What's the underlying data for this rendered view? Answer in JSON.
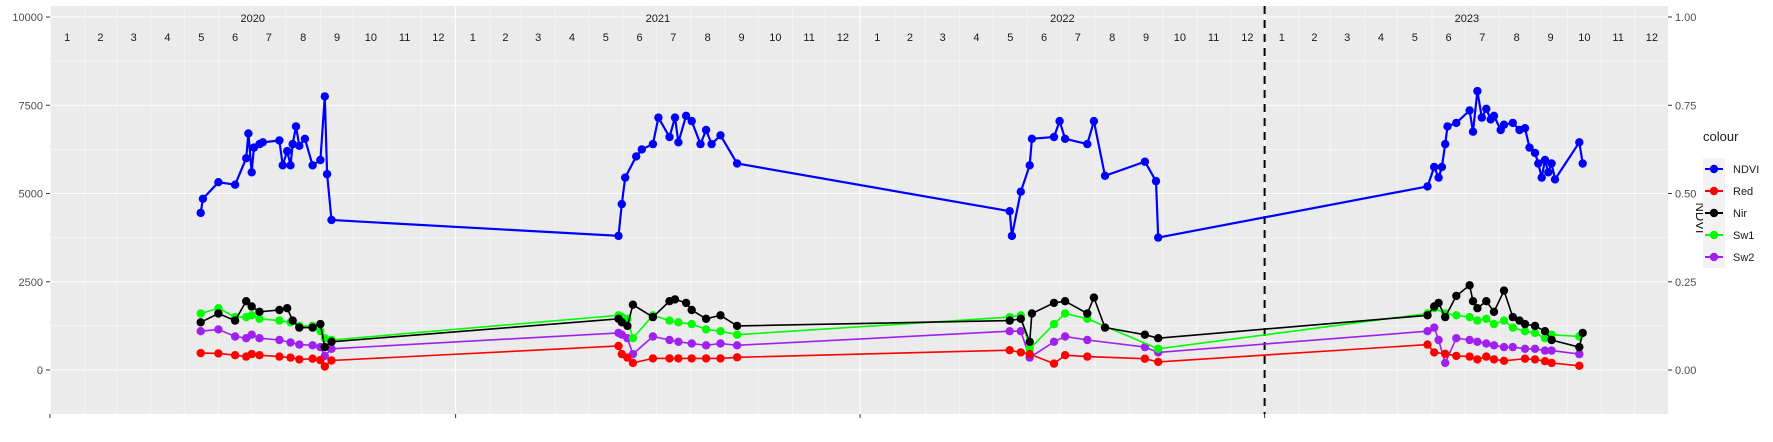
{
  "chart_data": {
    "type": "line",
    "left_axis": {
      "ylim": [
        0,
        10000
      ],
      "ticks": [
        0,
        2500,
        5000,
        7500,
        10000
      ],
      "tick_labels": [
        "0",
        "2500",
        "5000",
        "7500",
        "10000"
      ]
    },
    "right_axis": {
      "title": "NDVI",
      "ylim": [
        0,
        1
      ],
      "ticks": [
        0,
        0.25,
        0.5,
        0.75,
        1
      ],
      "tick_labels": [
        "0.00",
        "0.25",
        "0.50",
        "0.75",
        "1.00"
      ]
    },
    "years": [
      "2020",
      "2021",
      "2022",
      "2023"
    ],
    "months": [
      "1",
      "2",
      "3",
      "4",
      "5",
      "6",
      "7",
      "8",
      "9",
      "10",
      "11",
      "12"
    ],
    "x_start": "2020-01-01",
    "x_end": "2023-12-31",
    "vline": "2023-01-01",
    "grid": true,
    "legend": {
      "title": "colour",
      "position": "right",
      "items": [
        "NDVI",
        "Red",
        "Nir",
        "Sw1",
        "Sw2"
      ]
    },
    "series": [
      {
        "name": "NDVI",
        "color": "#0000ff",
        "axis": "right",
        "x": [
          "2020-05-16",
          "2020-05-18",
          "2020-06-01",
          "2020-06-16",
          "2020-06-26",
          "2020-06-28",
          "2020-07-01",
          "2020-07-03",
          "2020-07-08",
          "2020-07-11",
          "2020-07-26",
          "2020-07-29",
          "2020-08-02",
          "2020-08-05",
          "2020-08-07",
          "2020-08-10",
          "2020-08-13",
          "2020-08-18",
          "2020-08-25",
          "2020-09-01",
          "2020-09-05",
          "2020-09-07",
          "2020-09-11",
          "2021-05-28",
          "2021-05-31",
          "2021-06-03",
          "2021-06-13",
          "2021-06-18",
          "2021-06-28",
          "2021-07-03",
          "2021-07-13",
          "2021-07-18",
          "2021-07-21",
          "2021-07-28",
          "2021-08-02",
          "2021-08-10",
          "2021-08-15",
          "2021-08-20",
          "2021-08-28",
          "2021-09-12",
          "2022-05-16",
          "2022-05-18",
          "2022-05-26",
          "2022-06-03",
          "2022-06-05",
          "2022-06-25",
          "2022-06-30",
          "2022-07-05",
          "2022-07-25",
          "2022-07-31",
          "2022-08-10",
          "2022-09-15",
          "2022-09-25",
          "2022-09-27",
          "2023-05-28",
          "2023-06-03",
          "2023-06-07",
          "2023-06-10",
          "2023-06-13",
          "2023-06-15",
          "2023-06-23",
          "2023-07-05",
          "2023-07-08",
          "2023-07-12",
          "2023-07-16",
          "2023-07-20",
          "2023-07-24",
          "2023-07-27",
          "2023-08-02",
          "2023-08-05",
          "2023-08-13",
          "2023-08-19",
          "2023-08-24",
          "2023-08-28",
          "2023-09-02",
          "2023-09-05",
          "2023-09-08",
          "2023-09-11",
          "2023-09-14",
          "2023-09-17",
          "2023-09-20",
          "2023-10-12",
          "2023-10-15"
        ],
        "values": [
          0.445,
          0.485,
          0.532,
          0.525,
          0.6,
          0.67,
          0.56,
          0.63,
          0.64,
          0.645,
          0.65,
          0.58,
          0.62,
          0.58,
          0.64,
          0.69,
          0.635,
          0.655,
          0.58,
          0.595,
          0.775,
          0.555,
          0.425,
          0.38,
          0.47,
          0.545,
          0.605,
          0.625,
          0.64,
          0.715,
          0.66,
          0.715,
          0.645,
          0.72,
          0.705,
          0.64,
          0.68,
          0.64,
          0.665,
          0.585,
          0.45,
          0.38,
          0.505,
          0.58,
          0.655,
          0.66,
          0.705,
          0.655,
          0.64,
          0.705,
          0.55,
          0.59,
          0.535,
          0.375,
          0.52,
          0.575,
          0.545,
          0.575,
          0.64,
          0.69,
          0.7,
          0.735,
          0.675,
          0.79,
          0.715,
          0.74,
          0.71,
          0.72,
          0.68,
          0.695,
          0.7,
          0.68,
          0.685,
          0.63,
          0.615,
          0.585,
          0.545,
          0.595,
          0.56,
          0.585,
          0.54,
          0.645,
          0.585
        ]
      },
      {
        "name": "Red",
        "color": "#ff0000",
        "axis": "left",
        "x": [
          "2020-05-16",
          "2020-06-01",
          "2020-06-16",
          "2020-06-26",
          "2020-07-01",
          "2020-07-08",
          "2020-07-26",
          "2020-08-05",
          "2020-08-13",
          "2020-08-25",
          "2020-09-01",
          "2020-09-05",
          "2020-09-11",
          "2021-05-28",
          "2021-05-31",
          "2021-06-05",
          "2021-06-10",
          "2021-06-28",
          "2021-07-13",
          "2021-07-21",
          "2021-08-02",
          "2021-08-15",
          "2021-08-28",
          "2021-09-12",
          "2022-05-16",
          "2022-05-26",
          "2022-06-03",
          "2022-06-25",
          "2022-07-05",
          "2022-07-25",
          "2022-09-15",
          "2022-09-27",
          "2023-05-28",
          "2023-06-03",
          "2023-06-13",
          "2023-06-23",
          "2023-07-05",
          "2023-07-12",
          "2023-07-20",
          "2023-07-27",
          "2023-08-05",
          "2023-08-24",
          "2023-09-02",
          "2023-09-11",
          "2023-09-17",
          "2023-10-12"
        ],
        "values": [
          480,
          470,
          420,
          380,
          450,
          420,
          380,
          350,
          300,
          320,
          280,
          100,
          270,
          680,
          450,
          350,
          200,
          330,
          330,
          330,
          330,
          330,
          330,
          360,
          560,
          500,
          450,
          180,
          420,
          380,
          320,
          230,
          720,
          500,
          460,
          400,
          380,
          300,
          380,
          300,
          260,
          320,
          300,
          250,
          200,
          120
        ]
      },
      {
        "name": "Nir",
        "color": "#000000",
        "axis": "left",
        "x": [
          "2020-05-16",
          "2020-06-01",
          "2020-06-16",
          "2020-06-26",
          "2020-07-01",
          "2020-07-08",
          "2020-07-26",
          "2020-08-02",
          "2020-08-07",
          "2020-08-13",
          "2020-08-25",
          "2020-09-01",
          "2020-09-05",
          "2020-09-11",
          "2021-05-28",
          "2021-05-31",
          "2021-06-05",
          "2021-06-10",
          "2021-06-28",
          "2021-07-13",
          "2021-07-18",
          "2021-07-28",
          "2021-08-02",
          "2021-08-15",
          "2021-08-28",
          "2021-09-12",
          "2022-05-16",
          "2022-05-26",
          "2022-06-03",
          "2022-06-05",
          "2022-06-25",
          "2022-07-05",
          "2022-07-25",
          "2022-07-31",
          "2022-08-10",
          "2022-09-15",
          "2022-09-27",
          "2023-05-28",
          "2023-06-03",
          "2023-06-07",
          "2023-06-13",
          "2023-06-23",
          "2023-07-05",
          "2023-07-08",
          "2023-07-12",
          "2023-07-20",
          "2023-07-27",
          "2023-08-05",
          "2023-08-13",
          "2023-08-19",
          "2023-08-24",
          "2023-09-02",
          "2023-09-11",
          "2023-09-17",
          "2023-10-12",
          "2023-10-15"
        ],
        "values": [
          1350,
          1600,
          1400,
          1950,
          1800,
          1650,
          1700,
          1750,
          1400,
          1200,
          1200,
          1300,
          650,
          800,
          1450,
          1350,
          1250,
          1850,
          1500,
          1950,
          2000,
          1900,
          1700,
          1450,
          1550,
          1250,
          1400,
          1450,
          800,
          1600,
          1900,
          1950,
          1600,
          2050,
          1200,
          1000,
          900,
          1550,
          1800,
          1900,
          1500,
          2100,
          2400,
          1950,
          1750,
          1950,
          1650,
          2250,
          1500,
          1400,
          1300,
          1250,
          1100,
          850,
          650,
          1050
        ]
      },
      {
        "name": "Sw1",
        "color": "#00ff00",
        "axis": "left",
        "x": [
          "2020-05-16",
          "2020-06-01",
          "2020-06-16",
          "2020-06-26",
          "2020-07-01",
          "2020-07-08",
          "2020-07-26",
          "2020-08-05",
          "2020-08-13",
          "2020-08-25",
          "2020-09-01",
          "2020-09-05",
          "2020-09-11",
          "2021-05-28",
          "2021-05-31",
          "2021-06-05",
          "2021-06-10",
          "2021-06-28",
          "2021-07-13",
          "2021-07-21",
          "2021-08-02",
          "2021-08-15",
          "2021-08-28",
          "2021-09-12",
          "2022-05-16",
          "2022-05-26",
          "2022-06-03",
          "2022-06-25",
          "2022-07-05",
          "2022-07-25",
          "2022-09-27",
          "2023-05-28",
          "2023-06-03",
          "2023-06-13",
          "2023-06-23",
          "2023-07-05",
          "2023-07-12",
          "2023-07-20",
          "2023-07-27",
          "2023-08-05",
          "2023-08-13",
          "2023-08-24",
          "2023-09-02",
          "2023-09-11",
          "2023-09-17",
          "2023-10-12"
        ],
        "values": [
          1600,
          1750,
          1500,
          1500,
          1550,
          1450,
          1400,
          1350,
          1250,
          1250,
          1100,
          900,
          850,
          1550,
          1500,
          1450,
          900,
          1550,
          1400,
          1350,
          1300,
          1150,
          1100,
          1000,
          1500,
          1550,
          600,
          1300,
          1600,
          1450,
          600,
          1600,
          1750,
          1600,
          1550,
          1500,
          1400,
          1450,
          1300,
          1400,
          1200,
          1100,
          1050,
          900,
          1000,
          950
        ]
      },
      {
        "name": "Sw2",
        "color": "#a020f0",
        "axis": "left",
        "x": [
          "2020-05-16",
          "2020-06-01",
          "2020-06-16",
          "2020-06-26",
          "2020-07-01",
          "2020-07-08",
          "2020-07-26",
          "2020-08-05",
          "2020-08-13",
          "2020-08-25",
          "2020-09-01",
          "2020-09-05",
          "2020-09-11",
          "2021-05-28",
          "2021-05-31",
          "2021-06-05",
          "2021-06-10",
          "2021-06-28",
          "2021-07-13",
          "2021-07-21",
          "2021-08-02",
          "2021-08-15",
          "2021-08-28",
          "2021-09-12",
          "2022-05-16",
          "2022-05-26",
          "2022-06-03",
          "2022-06-25",
          "2022-07-05",
          "2022-07-25",
          "2022-09-15",
          "2022-09-27",
          "2023-05-28",
          "2023-06-03",
          "2023-06-07",
          "2023-06-13",
          "2023-06-23",
          "2023-07-05",
          "2023-07-12",
          "2023-07-20",
          "2023-07-27",
          "2023-08-05",
          "2023-08-13",
          "2023-08-24",
          "2023-09-02",
          "2023-09-11",
          "2023-09-17",
          "2023-10-12"
        ],
        "values": [
          1100,
          1150,
          950,
          900,
          1000,
          900,
          850,
          780,
          720,
          700,
          650,
          400,
          600,
          1050,
          1000,
          900,
          450,
          950,
          850,
          800,
          750,
          700,
          750,
          700,
          1100,
          1100,
          350,
          800,
          950,
          850,
          650,
          500,
          1100,
          1200,
          850,
          200,
          900,
          850,
          800,
          750,
          700,
          650,
          650,
          600,
          600,
          550,
          550,
          450
        ]
      }
    ]
  }
}
